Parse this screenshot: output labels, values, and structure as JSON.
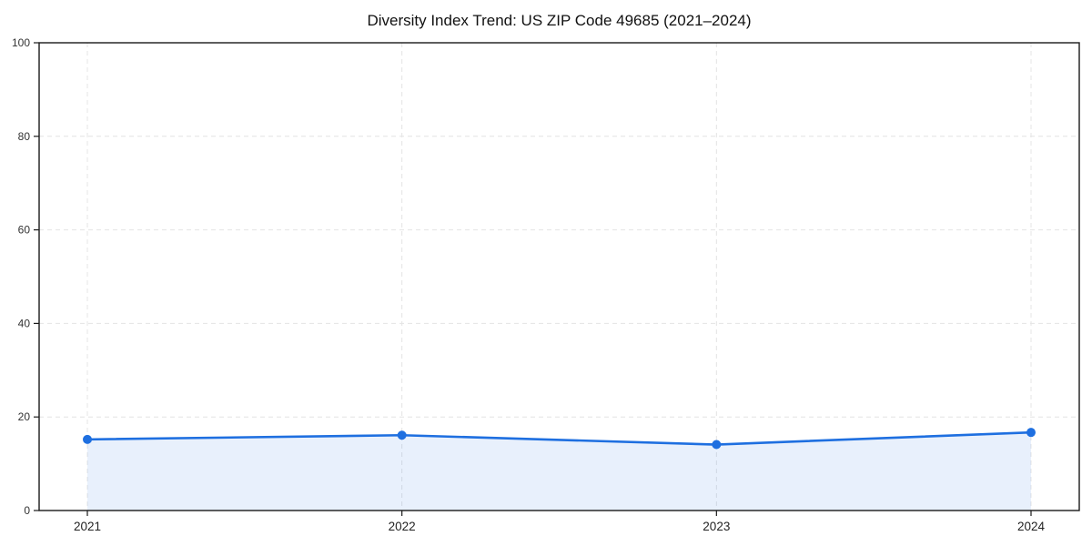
{
  "chart": {
    "title": "Diversity Index Trend: US ZIP Code 49685 (2021–2024)"
  },
  "chart_data": {
    "type": "area",
    "title": "Diversity Index Trend: US ZIP Code 49685 (2021–2024)",
    "x": [
      2021,
      2022,
      2023,
      2024
    ],
    "categories": [
      "2021",
      "2022",
      "2023",
      "2024"
    ],
    "series": [
      {
        "name": "Diversity Index",
        "values": [
          15.2,
          16.1,
          14.1,
          16.7
        ]
      }
    ],
    "xlabel": "",
    "ylabel": "",
    "ylim": [
      0,
      100
    ],
    "yticks": [
      0,
      20,
      40,
      60,
      80,
      100
    ],
    "xtick_labels": [
      "2021",
      "2022",
      "2023",
      "2024"
    ],
    "grid": true,
    "grid_style": "dashed",
    "legend_position": "none",
    "colors": {
      "line": "#1e6fe0",
      "marker": "#1e6fe0",
      "fill": "#1e6fe0",
      "fill_opacity": 0.1,
      "grid": "#e4e4e4",
      "spine": "#1a1a1a",
      "title": "#111111",
      "tick_label": "#333333",
      "background": "#ffffff"
    }
  }
}
